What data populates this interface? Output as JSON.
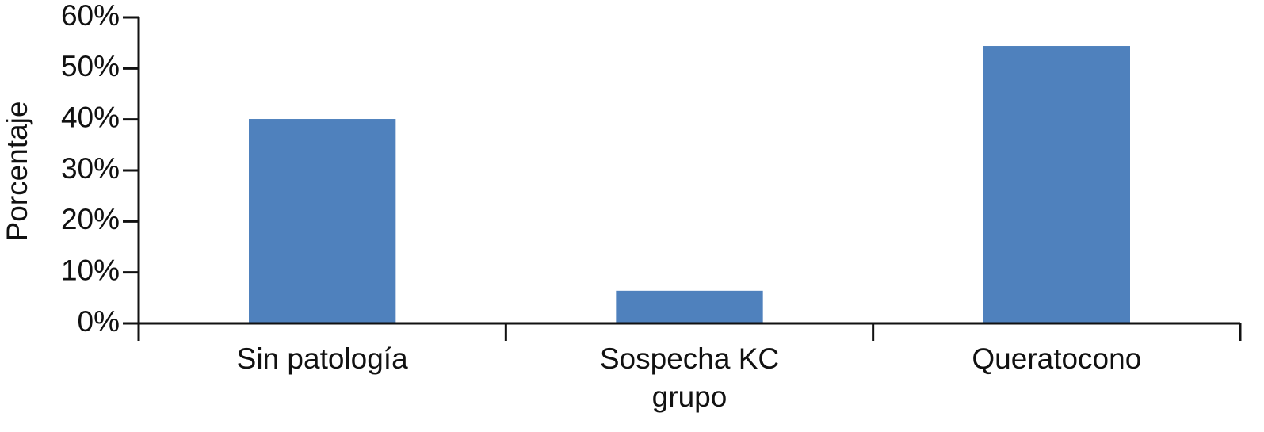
{
  "chart_data": {
    "type": "bar",
    "x_label": "grupo",
    "y_label": "Porcentaje",
    "categories": [
      "Sin patología",
      "Sospecha KC",
      "Queratocono"
    ],
    "values": [
      40.1,
      6.4,
      54.4
    ],
    "color": "#4f81bd",
    "ylim": [
      0,
      60
    ],
    "yticks": [
      {
        "value": 0,
        "label": "0%"
      },
      {
        "value": 10,
        "label": "10%"
      },
      {
        "value": 20,
        "label": "20%"
      },
      {
        "value": 30,
        "label": "30%"
      },
      {
        "value": 40,
        "label": "40%"
      },
      {
        "value": 50,
        "label": "50%"
      },
      {
        "value": 60,
        "label": "60%"
      }
    ],
    "grid": false
  }
}
